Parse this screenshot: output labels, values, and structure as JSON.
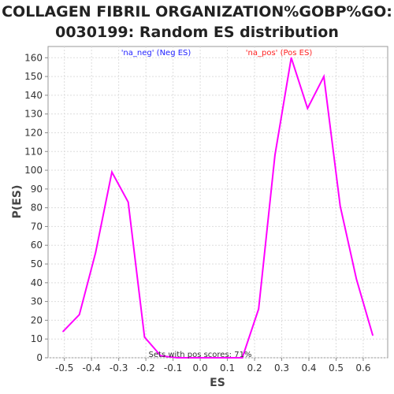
{
  "chart_data": {
    "type": "line",
    "title_lines": [
      "COLLAGEN FIBRIL ORGANIZATION%GOBP%GO:",
      "0030199: Random ES distribution"
    ],
    "xlabel": "ES",
    "ylabel": "P(ES)",
    "xlim": [
      -0.56,
      0.69
    ],
    "ylim": [
      0,
      166
    ],
    "xticks": [
      -0.5,
      -0.4,
      -0.3,
      -0.2,
      -0.1,
      0.0,
      0.1,
      0.2,
      0.3,
      0.4,
      0.5,
      0.6
    ],
    "yticks": [
      0,
      10,
      20,
      30,
      40,
      50,
      60,
      70,
      80,
      90,
      100,
      110,
      120,
      130,
      140,
      150,
      160
    ],
    "grid": true,
    "legend": [
      {
        "label": "'na_neg' (Neg ES)",
        "color": "#2222ff"
      },
      {
        "label": "'na_pos' (Pos ES)",
        "color": "#ff2222"
      }
    ],
    "annotation": "Sets with pos scores: 71%",
    "series": [
      {
        "color": "#ff00ff",
        "points": [
          [
            -0.505,
            14
          ],
          [
            -0.445,
            23
          ],
          [
            -0.385,
            56
          ],
          [
            -0.325,
            99
          ],
          [
            -0.265,
            83
          ],
          [
            -0.205,
            11
          ],
          [
            -0.145,
            1
          ],
          [
            -0.085,
            0
          ],
          [
            -0.025,
            0
          ],
          [
            0.035,
            0
          ],
          [
            0.095,
            0
          ],
          [
            0.155,
            0
          ],
          [
            0.215,
            26
          ],
          [
            0.275,
            108
          ],
          [
            0.335,
            160
          ],
          [
            0.395,
            133
          ],
          [
            0.455,
            150
          ],
          [
            0.515,
            81
          ],
          [
            0.575,
            42
          ],
          [
            0.635,
            12
          ]
        ]
      }
    ]
  }
}
